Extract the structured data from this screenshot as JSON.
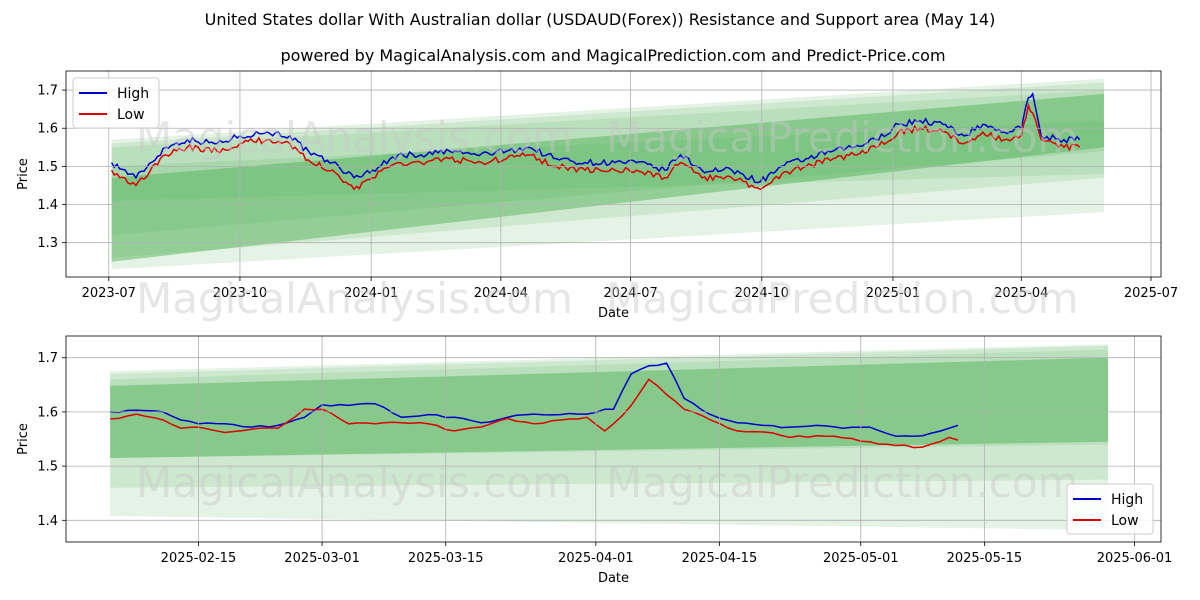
{
  "figure": {
    "title": "United States dollar With Australian dollar (USDAUD(Forex)) Resistance and Support area (May 14)",
    "subtitle": "powered by MagicalAnalysis.com and MagicalPrediction.com and Predict-Price.com",
    "watermark_left": "MagicalAnalysis.com",
    "watermark_right": "MagicalPrediction.com"
  },
  "colors": {
    "high": "#0000cc",
    "low": "#dd0000",
    "band": "#4caf50"
  },
  "chart_data": [
    {
      "type": "line",
      "xlabel": "Date",
      "ylabel": "Price",
      "x_ticks": [
        "2023-07",
        "2023-10",
        "2024-01",
        "2024-04",
        "2024-07",
        "2024-10",
        "2025-01",
        "2025-04",
        "2025-07"
      ],
      "y_ticks": [
        "1.3",
        "1.4",
        "1.5",
        "1.6",
        "1.7"
      ],
      "ylim": [
        1.21,
        1.75
      ],
      "xlim": [
        "2023-06-01",
        "2025-07-08"
      ],
      "legend": "top-left",
      "grid": true,
      "series": [
        {
          "name": "High",
          "x": [
            "2023-07-03",
            "2023-07-20",
            "2023-08-10",
            "2023-08-25",
            "2023-09-15",
            "2023-10-01",
            "2023-10-20",
            "2023-11-05",
            "2023-11-20",
            "2023-12-05",
            "2023-12-20",
            "2024-01-02",
            "2024-01-20",
            "2024-02-05",
            "2024-02-25",
            "2024-03-15",
            "2024-04-05",
            "2024-04-20",
            "2024-05-10",
            "2024-05-30",
            "2024-06-20",
            "2024-07-05",
            "2024-07-25",
            "2024-08-05",
            "2024-08-20",
            "2024-09-10",
            "2024-09-30",
            "2024-10-15",
            "2024-11-01",
            "2024-11-20",
            "2024-12-05",
            "2024-12-20",
            "2025-01-05",
            "2025-01-20",
            "2025-02-05",
            "2025-02-20",
            "2025-03-05",
            "2025-03-20",
            "2025-04-01",
            "2025-04-06",
            "2025-04-09",
            "2025-04-15",
            "2025-05-01",
            "2025-05-12"
          ],
          "values": [
            1.51,
            1.47,
            1.55,
            1.57,
            1.56,
            1.58,
            1.59,
            1.58,
            1.53,
            1.51,
            1.47,
            1.49,
            1.53,
            1.53,
            1.54,
            1.53,
            1.54,
            1.55,
            1.52,
            1.51,
            1.51,
            1.51,
            1.49,
            1.53,
            1.49,
            1.49,
            1.46,
            1.5,
            1.52,
            1.54,
            1.55,
            1.57,
            1.61,
            1.62,
            1.61,
            1.58,
            1.61,
            1.59,
            1.6,
            1.68,
            1.69,
            1.58,
            1.57,
            1.57
          ]
        },
        {
          "name": "Low",
          "x": [
            "2023-07-03",
            "2023-07-20",
            "2023-08-10",
            "2023-08-25",
            "2023-09-15",
            "2023-10-01",
            "2023-10-20",
            "2023-11-05",
            "2023-11-20",
            "2023-12-05",
            "2023-12-20",
            "2024-01-02",
            "2024-01-20",
            "2024-02-05",
            "2024-02-25",
            "2024-03-15",
            "2024-04-05",
            "2024-04-20",
            "2024-05-10",
            "2024-05-30",
            "2024-06-20",
            "2024-07-05",
            "2024-07-25",
            "2024-08-05",
            "2024-08-20",
            "2024-09-10",
            "2024-09-30",
            "2024-10-15",
            "2024-11-01",
            "2024-11-20",
            "2024-12-05",
            "2024-12-20",
            "2025-01-05",
            "2025-01-20",
            "2025-02-05",
            "2025-02-20",
            "2025-03-05",
            "2025-03-20",
            "2025-04-01",
            "2025-04-06",
            "2025-04-09",
            "2025-04-15",
            "2025-05-01",
            "2025-05-12"
          ],
          "values": [
            1.49,
            1.45,
            1.53,
            1.55,
            1.54,
            1.56,
            1.57,
            1.56,
            1.51,
            1.49,
            1.44,
            1.47,
            1.51,
            1.51,
            1.52,
            1.51,
            1.52,
            1.53,
            1.5,
            1.49,
            1.49,
            1.49,
            1.47,
            1.51,
            1.47,
            1.47,
            1.44,
            1.48,
            1.5,
            1.52,
            1.53,
            1.55,
            1.59,
            1.6,
            1.59,
            1.56,
            1.59,
            1.57,
            1.58,
            1.66,
            1.64,
            1.57,
            1.55,
            1.55
          ]
        }
      ],
      "bands": [
        {
          "x": [
            "2023-07-03",
            "2025-05-29"
          ],
          "upper": [
            1.57,
            1.73
          ],
          "lower": [
            1.23,
            1.38
          ],
          "opacity": 0.15
        },
        {
          "x": [
            "2023-07-03",
            "2025-05-29"
          ],
          "upper": [
            1.56,
            1.72
          ],
          "lower": [
            1.26,
            1.47
          ],
          "opacity": 0.15
        },
        {
          "x": [
            "2023-07-03",
            "2025-05-29"
          ],
          "upper": [
            1.55,
            1.7
          ],
          "lower": [
            1.32,
            1.54
          ],
          "opacity": 0.15
        },
        {
          "x": [
            "2023-07-03",
            "2025-05-29"
          ],
          "upper": [
            1.47,
            1.69
          ],
          "lower": [
            1.25,
            1.55
          ],
          "opacity": 0.45
        },
        {
          "x": [
            "2023-07-03",
            "2025-05-29"
          ],
          "upper": [
            1.5,
            1.62
          ],
          "lower": [
            1.41,
            1.48
          ],
          "opacity": 0.15
        }
      ]
    },
    {
      "type": "line",
      "xlabel": "Date",
      "ylabel": "Price",
      "x_ticks": [
        "2025-02-15",
        "2025-03-01",
        "2025-03-15",
        "2025-04-01",
        "2025-04-15",
        "2025-05-01",
        "2025-05-15",
        "2025-06-01"
      ],
      "y_ticks": [
        "1.4",
        "1.5",
        "1.6",
        "1.7"
      ],
      "ylim": [
        1.36,
        1.74
      ],
      "xlim": [
        "2025-01-31",
        "2025-06-04"
      ],
      "legend": "bottom-right",
      "grid": true,
      "series": [
        {
          "name": "High",
          "x": [
            "2025-02-05",
            "2025-02-08",
            "2025-02-11",
            "2025-02-13",
            "2025-02-15",
            "2025-02-18",
            "2025-02-21",
            "2025-02-24",
            "2025-02-27",
            "2025-03-01",
            "2025-03-04",
            "2025-03-07",
            "2025-03-10",
            "2025-03-13",
            "2025-03-16",
            "2025-03-19",
            "2025-03-22",
            "2025-03-25",
            "2025-03-28",
            "2025-03-31",
            "2025-04-02",
            "2025-04-03",
            "2025-04-05",
            "2025-04-07",
            "2025-04-09",
            "2025-04-11",
            "2025-04-14",
            "2025-04-17",
            "2025-04-20",
            "2025-04-23",
            "2025-04-26",
            "2025-04-29",
            "2025-05-02",
            "2025-05-05",
            "2025-05-08",
            "2025-05-11",
            "2025-05-12"
          ],
          "values": [
            1.6,
            1.603,
            1.6,
            1.585,
            1.578,
            1.578,
            1.572,
            1.575,
            1.59,
            1.613,
            1.612,
            1.615,
            1.59,
            1.595,
            1.59,
            1.58,
            1.59,
            1.596,
            1.595,
            1.596,
            1.605,
            1.605,
            1.67,
            1.685,
            1.69,
            1.625,
            1.595,
            1.58,
            1.575,
            1.572,
            1.575,
            1.57,
            1.572,
            1.555,
            1.556,
            1.57,
            1.575
          ]
        },
        {
          "name": "Low",
          "x": [
            "2025-02-05",
            "2025-02-08",
            "2025-02-11",
            "2025-02-13",
            "2025-02-15",
            "2025-02-18",
            "2025-02-21",
            "2025-02-24",
            "2025-02-27",
            "2025-03-01",
            "2025-03-04",
            "2025-03-07",
            "2025-03-10",
            "2025-03-13",
            "2025-03-16",
            "2025-03-19",
            "2025-03-22",
            "2025-03-25",
            "2025-03-28",
            "2025-03-31",
            "2025-04-02",
            "2025-04-03",
            "2025-04-05",
            "2025-04-07",
            "2025-04-09",
            "2025-04-11",
            "2025-04-14",
            "2025-04-17",
            "2025-04-20",
            "2025-04-23",
            "2025-04-26",
            "2025-04-29",
            "2025-05-02",
            "2025-05-05",
            "2025-05-08",
            "2025-05-11",
            "2025-05-12"
          ],
          "values": [
            1.587,
            1.596,
            1.585,
            1.57,
            1.572,
            1.562,
            1.568,
            1.57,
            1.605,
            1.605,
            1.578,
            1.578,
            1.58,
            1.578,
            1.565,
            1.572,
            1.588,
            1.578,
            1.585,
            1.59,
            1.565,
            1.578,
            1.612,
            1.66,
            1.632,
            1.605,
            1.585,
            1.565,
            1.563,
            1.553,
            1.556,
            1.552,
            1.545,
            1.538,
            1.535,
            1.553,
            1.548
          ]
        }
      ],
      "bands": [
        {
          "x": [
            "2025-02-05",
            "2025-05-29"
          ],
          "upper": [
            1.675,
            1.725
          ],
          "lower": [
            1.408,
            1.382
          ],
          "opacity": 0.15
        },
        {
          "x": [
            "2025-02-05",
            "2025-05-29"
          ],
          "upper": [
            1.67,
            1.722
          ],
          "lower": [
            1.46,
            1.475
          ],
          "opacity": 0.15
        },
        {
          "x": [
            "2025-02-05",
            "2025-05-29"
          ],
          "upper": [
            1.66,
            1.715
          ],
          "lower": [
            1.515,
            1.54
          ],
          "opacity": 0.15
        },
        {
          "x": [
            "2025-02-05",
            "2025-05-29"
          ],
          "upper": [
            1.648,
            1.7
          ],
          "lower": [
            1.515,
            1.545
          ],
          "opacity": 0.45
        }
      ]
    }
  ]
}
